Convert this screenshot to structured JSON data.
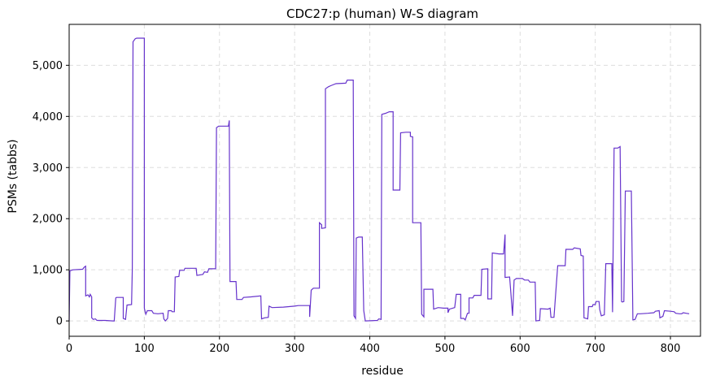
{
  "chart_data": {
    "type": "line",
    "title": "CDC27:p (human) W-S diagram",
    "xlabel": "residue",
    "ylabel": "PSMs (tabbs)",
    "xlim": [
      0,
      840
    ],
    "ylim": [
      -300,
      5800
    ],
    "x_ticks": [
      0,
      100,
      200,
      300,
      400,
      500,
      600,
      700,
      800
    ],
    "x_tick_labels": [
      "0",
      "100",
      "200",
      "300",
      "400",
      "500",
      "600",
      "700",
      "800"
    ],
    "y_ticks": [
      0,
      1000,
      2000,
      3000,
      4000,
      5000
    ],
    "y_tick_labels": [
      "0",
      "1,000",
      "2,000",
      "3,000",
      "4,000",
      "5,000"
    ],
    "grid": true,
    "line_color": "#6633cc",
    "series": [
      {
        "points": [
          [
            0,
            0
          ],
          [
            1,
            980
          ],
          [
            5,
            1000
          ],
          [
            18,
            1010
          ],
          [
            20,
            1050
          ],
          [
            22,
            1070
          ],
          [
            22,
            490
          ],
          [
            25,
            510
          ],
          [
            27,
            470
          ],
          [
            28,
            520
          ],
          [
            30,
            470
          ],
          [
            30,
            60
          ],
          [
            32,
            30
          ],
          [
            35,
            40
          ],
          [
            37,
            10
          ],
          [
            48,
            10
          ],
          [
            58,
            0
          ],
          [
            60,
            0
          ],
          [
            62,
            450
          ],
          [
            63,
            460
          ],
          [
            72,
            460
          ],
          [
            72,
            50
          ],
          [
            75,
            30
          ],
          [
            77,
            310
          ],
          [
            83,
            320
          ],
          [
            84,
            1000
          ],
          [
            85,
            5460
          ],
          [
            88,
            5520
          ],
          [
            90,
            5530
          ],
          [
            100,
            5530
          ],
          [
            100,
            250
          ],
          [
            102,
            130
          ],
          [
            104,
            200
          ],
          [
            110,
            200
          ],
          [
            112,
            150
          ],
          [
            118,
            140
          ],
          [
            125,
            150
          ],
          [
            126,
            40
          ],
          [
            128,
            0
          ],
          [
            131,
            50
          ],
          [
            132,
            200
          ],
          [
            136,
            200
          ],
          [
            137,
            180
          ],
          [
            140,
            180
          ],
          [
            141,
            860
          ],
          [
            146,
            870
          ],
          [
            147,
            990
          ],
          [
            153,
            990
          ],
          [
            154,
            1030
          ],
          [
            169,
            1030
          ],
          [
            170,
            890
          ],
          [
            178,
            910
          ],
          [
            180,
            960
          ],
          [
            184,
            950
          ],
          [
            186,
            1020
          ],
          [
            195,
            1020
          ],
          [
            196,
            3780
          ],
          [
            199,
            3810
          ],
          [
            212,
            3810
          ],
          [
            213,
            3920
          ],
          [
            214,
            770
          ],
          [
            222,
            770
          ],
          [
            223,
            420
          ],
          [
            230,
            420
          ],
          [
            232,
            460
          ],
          [
            242,
            470
          ],
          [
            255,
            490
          ],
          [
            256,
            40
          ],
          [
            260,
            60
          ],
          [
            265,
            70
          ],
          [
            266,
            290
          ],
          [
            270,
            260
          ],
          [
            285,
            270
          ],
          [
            300,
            290
          ],
          [
            305,
            300
          ],
          [
            320,
            300
          ],
          [
            320,
            80
          ],
          [
            322,
            600
          ],
          [
            325,
            640
          ],
          [
            333,
            640
          ],
          [
            333,
            1920
          ],
          [
            336,
            1880
          ],
          [
            336,
            1810
          ],
          [
            341,
            1820
          ],
          [
            341,
            4540
          ],
          [
            345,
            4580
          ],
          [
            348,
            4600
          ],
          [
            355,
            4640
          ],
          [
            368,
            4650
          ],
          [
            370,
            4710
          ],
          [
            378,
            4710
          ],
          [
            378,
            4650
          ],
          [
            379,
            100
          ],
          [
            381,
            50
          ],
          [
            382,
            1620
          ],
          [
            385,
            1640
          ],
          [
            390,
            1640
          ],
          [
            392,
            200
          ],
          [
            394,
            0
          ],
          [
            410,
            10
          ],
          [
            412,
            40
          ],
          [
            415,
            30
          ],
          [
            416,
            4040
          ],
          [
            421,
            4060
          ],
          [
            426,
            4090
          ],
          [
            431,
            4090
          ],
          [
            431,
            2560
          ],
          [
            440,
            2560
          ],
          [
            441,
            3680
          ],
          [
            448,
            3690
          ],
          [
            454,
            3690
          ],
          [
            454,
            3610
          ],
          [
            457,
            3600
          ],
          [
            457,
            1920
          ],
          [
            468,
            1920
          ],
          [
            469,
            130
          ],
          [
            472,
            80
          ],
          [
            472,
            620
          ],
          [
            484,
            620
          ],
          [
            485,
            230
          ],
          [
            491,
            260
          ],
          [
            498,
            250
          ],
          [
            504,
            250
          ],
          [
            504,
            160
          ],
          [
            506,
            230
          ],
          [
            513,
            260
          ],
          [
            515,
            520
          ],
          [
            521,
            520
          ],
          [
            521,
            50
          ],
          [
            525,
            50
          ],
          [
            527,
            20
          ],
          [
            530,
            150
          ],
          [
            532,
            150
          ],
          [
            532,
            450
          ],
          [
            537,
            450
          ],
          [
            539,
            500
          ],
          [
            548,
            500
          ],
          [
            549,
            1010
          ],
          [
            557,
            1020
          ],
          [
            557,
            430
          ],
          [
            562,
            430
          ],
          [
            563,
            1330
          ],
          [
            572,
            1310
          ],
          [
            578,
            1310
          ],
          [
            580,
            1690
          ],
          [
            580,
            850
          ],
          [
            586,
            860
          ],
          [
            588,
            490
          ],
          [
            590,
            100
          ],
          [
            592,
            800
          ],
          [
            595,
            830
          ],
          [
            603,
            830
          ],
          [
            606,
            800
          ],
          [
            611,
            800
          ],
          [
            613,
            760
          ],
          [
            620,
            760
          ],
          [
            621,
            0
          ],
          [
            626,
            10
          ],
          [
            627,
            240
          ],
          [
            637,
            230
          ],
          [
            640,
            250
          ],
          [
            641,
            70
          ],
          [
            645,
            70
          ],
          [
            650,
            1080
          ],
          [
            660,
            1080
          ],
          [
            661,
            1400
          ],
          [
            670,
            1400
          ],
          [
            672,
            1430
          ],
          [
            680,
            1410
          ],
          [
            681,
            1280
          ],
          [
            684,
            1270
          ],
          [
            685,
            60
          ],
          [
            690,
            40
          ],
          [
            691,
            280
          ],
          [
            696,
            280
          ],
          [
            697,
            320
          ],
          [
            700,
            320
          ],
          [
            701,
            380
          ],
          [
            705,
            380
          ],
          [
            706,
            220
          ],
          [
            708,
            100
          ],
          [
            712,
            120
          ],
          [
            714,
            1120
          ],
          [
            722,
            1120
          ],
          [
            723,
            170
          ],
          [
            725,
            3380
          ],
          [
            730,
            3380
          ],
          [
            733,
            3410
          ],
          [
            735,
            380
          ],
          [
            736,
            370
          ],
          [
            738,
            380
          ],
          [
            740,
            2540
          ],
          [
            748,
            2540
          ],
          [
            750,
            20
          ],
          [
            753,
            30
          ],
          [
            756,
            140
          ],
          [
            760,
            140
          ],
          [
            770,
            150
          ],
          [
            778,
            160
          ],
          [
            780,
            190
          ],
          [
            785,
            200
          ],
          [
            786,
            60
          ],
          [
            790,
            90
          ],
          [
            792,
            200
          ],
          [
            800,
            190
          ],
          [
            805,
            180
          ],
          [
            807,
            150
          ],
          [
            812,
            140
          ],
          [
            815,
            140
          ],
          [
            817,
            160
          ],
          [
            821,
            150
          ],
          [
            825,
            140
          ]
        ]
      }
    ]
  }
}
